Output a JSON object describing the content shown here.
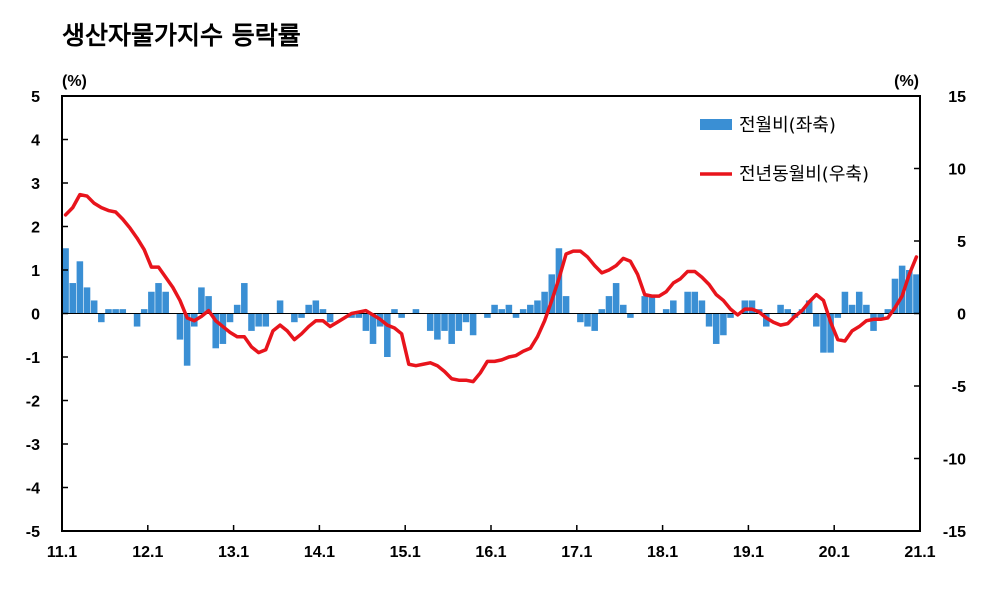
{
  "chart_data": {
    "type": "bar+line",
    "title": "생산자물가지수 등락률",
    "left_axis": {
      "unit": "(%)",
      "ylim": [
        -5,
        5
      ],
      "ticks": [
        "5",
        "4",
        "3",
        "2",
        "1",
        "0",
        "-1",
        "-2",
        "-3",
        "-4",
        "-5"
      ]
    },
    "right_axis": {
      "unit": "(%)",
      "ylim": [
        -15,
        15
      ],
      "ticks": [
        "15",
        "10",
        "5",
        "0",
        "-5",
        "-10",
        "-15"
      ]
    },
    "x_ticks": [
      "11.1",
      "12.1",
      "13.1",
      "14.1",
      "15.1",
      "16.1",
      "17.1",
      "18.1",
      "19.1",
      "20.1",
      "21.1"
    ],
    "grid": false,
    "legend_position": "top-right",
    "series": [
      {
        "name": "전월비(좌축)",
        "kind": "bar",
        "axis": "left",
        "color": "#3a8fd4",
        "values": [
          1.5,
          0.7,
          1.2,
          0.6,
          0.3,
          -0.2,
          0.1,
          0.1,
          0.1,
          0.0,
          -0.3,
          0.1,
          0.5,
          0.7,
          0.5,
          0.0,
          -0.6,
          -1.2,
          -0.3,
          0.6,
          0.4,
          -0.8,
          -0.7,
          -0.2,
          0.2,
          0.7,
          -0.4,
          -0.3,
          -0.3,
          0.0,
          0.3,
          0.0,
          -0.2,
          -0.1,
          0.2,
          0.3,
          0.1,
          -0.2,
          0.0,
          0.0,
          -0.1,
          -0.1,
          -0.4,
          -0.7,
          -0.3,
          -1.0,
          0.1,
          -0.1,
          0.0,
          0.1,
          0.0,
          -0.4,
          -0.6,
          -0.4,
          -0.7,
          -0.4,
          -0.2,
          -0.5,
          0.0,
          -0.1,
          0.2,
          0.1,
          0.2,
          -0.1,
          0.1,
          0.2,
          0.3,
          0.5,
          0.9,
          1.5,
          0.4,
          0.0,
          -0.2,
          -0.3,
          -0.4,
          0.1,
          0.4,
          0.7,
          0.2,
          -0.1,
          0.0,
          0.4,
          0.4,
          0.0,
          0.1,
          0.3,
          0.0,
          0.5,
          0.5,
          0.3,
          -0.3,
          -0.7,
          -0.5,
          -0.1,
          0.0,
          0.3,
          0.3,
          0.1,
          -0.3,
          0.0,
          0.2,
          0.1,
          -0.1,
          0.1,
          0.3,
          -0.3,
          -0.9,
          -0.9,
          -0.1,
          0.5,
          0.2,
          0.5,
          0.2,
          -0.4,
          -0.1,
          0.1,
          0.8,
          1.1,
          1.0,
          0.9
        ]
      },
      {
        "name": "전년동월비(우축)",
        "kind": "line",
        "axis": "right",
        "color": "#e8141c",
        "values": [
          6.8,
          7.3,
          8.2,
          8.1,
          7.6,
          7.3,
          7.1,
          7.0,
          6.5,
          5.9,
          5.2,
          4.4,
          3.2,
          3.2,
          2.5,
          1.8,
          0.9,
          -0.3,
          -0.5,
          -0.2,
          0.2,
          -0.5,
          -0.9,
          -1.3,
          -1.6,
          -1.6,
          -2.3,
          -2.7,
          -2.5,
          -1.2,
          -0.8,
          -1.2,
          -1.8,
          -1.4,
          -0.9,
          -0.5,
          -0.5,
          -0.9,
          -0.6,
          -0.3,
          0.0,
          0.1,
          0.2,
          -0.1,
          -0.4,
          -0.8,
          -1.0,
          -1.4,
          -3.5,
          -3.6,
          -3.5,
          -3.4,
          -3.6,
          -4.0,
          -4.5,
          -4.6,
          -4.6,
          -4.7,
          -4.1,
          -3.3,
          -3.3,
          -3.2,
          -3.0,
          -2.9,
          -2.6,
          -2.4,
          -1.6,
          -0.5,
          0.9,
          2.4,
          4.1,
          4.3,
          4.3,
          3.9,
          3.3,
          2.8,
          3.0,
          3.3,
          3.8,
          3.6,
          2.7,
          1.3,
          1.2,
          1.2,
          1.5,
          2.1,
          2.4,
          2.9,
          2.9,
          2.5,
          2.0,
          1.3,
          0.9,
          0.3,
          -0.1,
          0.3,
          0.3,
          0.1,
          -0.3,
          -0.6,
          -0.8,
          -0.7,
          -0.2,
          0.2,
          0.8,
          1.3,
          0.9,
          -0.6,
          -1.8,
          -1.9,
          -1.2,
          -0.9,
          -0.5,
          -0.4,
          -0.4,
          -0.3,
          0.4,
          1.2,
          2.7,
          3.9
        ]
      }
    ]
  }
}
